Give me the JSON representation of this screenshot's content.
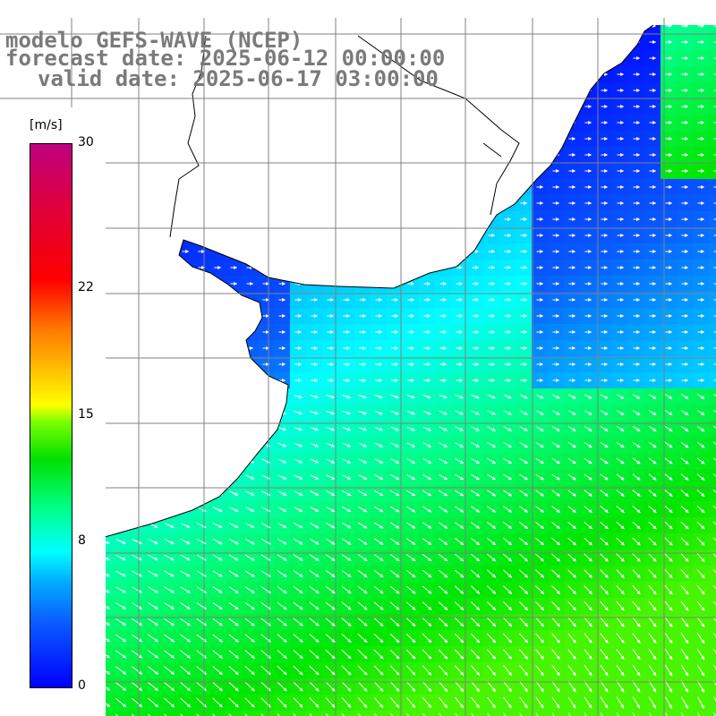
{
  "title": {
    "line1": "modelo GEFS-WAVE (NCEP)",
    "line2": "forecast date: 2025-06-12 00:00:00",
    "line3": "valid date: 2025-06-17 03:00:00"
  },
  "colorbar": {
    "units": "[m/s]",
    "max": 30,
    "ticks": [
      {
        "label": "30",
        "value": 30
      },
      {
        "label": "22",
        "value": 22
      },
      {
        "label": "15",
        "value": 15
      },
      {
        "label": "8",
        "value": 8
      },
      {
        "label": "0",
        "value": 0
      }
    ]
  },
  "map": {
    "variable": "wind speed and direction",
    "coastline_color": "#000000",
    "land_color": "#ffffff",
    "ocean_color": "#00c8ff",
    "grid_color": "#808080"
  }
}
